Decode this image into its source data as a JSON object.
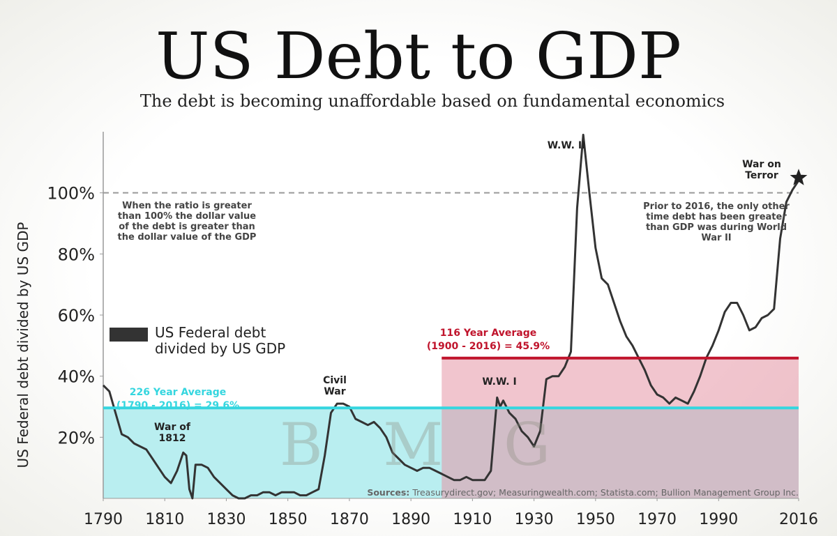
{
  "chart_data": {
    "type": "line",
    "title": "US Debt to GDP",
    "subtitle": "The debt is becoming unaffordable based on fundamental economics",
    "ylabel": "US Federal debt divided by US GDP",
    "xlim": [
      1790,
      2016
    ],
    "xticks": [
      1790,
      1810,
      1830,
      1850,
      1870,
      1890,
      1910,
      1930,
      1950,
      1970,
      1990,
      2016
    ],
    "ylim": [
      0,
      120
    ],
    "yticks": [
      {
        "value": 20,
        "label": "20%"
      },
      {
        "value": 40,
        "label": "40%"
      },
      {
        "value": 60,
        "label": "60%"
      },
      {
        "value": 80,
        "label": "80%"
      },
      {
        "value": 100,
        "label": "100%"
      }
    ],
    "reference_line": 100,
    "series": [
      {
        "name": "US Federal debt divided by US GDP",
        "color": "#333333",
        "x": [
          1790,
          1792,
          1794,
          1796,
          1798,
          1800,
          1802,
          1804,
          1806,
          1808,
          1810,
          1812,
          1814,
          1816,
          1817,
          1818,
          1819,
          1820,
          1822,
          1824,
          1826,
          1828,
          1830,
          1832,
          1834,
          1836,
          1838,
          1840,
          1842,
          1844,
          1846,
          1848,
          1850,
          1852,
          1854,
          1856,
          1858,
          1860,
          1862,
          1864,
          1866,
          1868,
          1870,
          1872,
          1874,
          1876,
          1878,
          1880,
          1882,
          1884,
          1886,
          1888,
          1890,
          1892,
          1894,
          1896,
          1898,
          1900,
          1902,
          1904,
          1906,
          1908,
          1910,
          1912,
          1914,
          1916,
          1918,
          1919,
          1920,
          1922,
          1924,
          1926,
          1928,
          1930,
          1932,
          1934,
          1936,
          1938,
          1940,
          1942,
          1944,
          1946,
          1948,
          1950,
          1952,
          1954,
          1956,
          1958,
          1960,
          1962,
          1964,
          1966,
          1968,
          1970,
          1972,
          1974,
          1976,
          1978,
          1980,
          1982,
          1984,
          1986,
          1988,
          1990,
          1992,
          1994,
          1996,
          1998,
          2000,
          2002,
          2004,
          2006,
          2008,
          2010,
          2012,
          2014,
          2016
        ],
        "values": [
          37,
          35,
          28,
          21,
          20,
          18,
          17,
          16,
          13,
          10,
          7,
          5,
          9,
          15,
          14,
          3,
          0,
          11,
          11,
          10,
          7,
          5,
          3,
          1,
          0,
          0,
          1,
          1,
          2,
          2,
          1,
          2,
          2,
          2,
          1,
          1,
          2,
          3,
          14,
          28,
          31,
          31,
          30,
          26,
          25,
          24,
          25,
          23,
          20,
          15,
          13,
          11,
          10,
          9,
          10,
          10,
          9,
          8,
          7,
          6,
          6,
          7,
          6,
          6,
          6,
          9,
          33,
          30,
          32,
          28,
          26,
          22,
          20,
          17,
          22,
          39,
          40,
          40,
          43,
          48,
          95,
          119,
          100,
          82,
          72,
          70,
          64,
          58,
          53,
          50,
          46,
          42,
          37,
          34,
          33,
          31,
          33,
          32,
          31,
          35,
          40,
          46,
          50,
          55,
          61,
          64,
          64,
          60,
          55,
          56,
          59,
          60,
          62,
          85,
          97,
          101,
          104
        ]
      }
    ],
    "averages": [
      {
        "value": 29.6,
        "start": 1790,
        "end": 2016,
        "color": "#35d6df",
        "fill": "#b9eef0",
        "label": [
          "226 Year Average",
          "(1790 - 2016) = 29.6%"
        ]
      },
      {
        "value": 45.9,
        "start": 1900,
        "end": 2016,
        "color": "#c0142c",
        "fill": "rgba(230,150,165,0.55)",
        "label": [
          "116 Year Average",
          "(1900 - 2016) = 45.9%"
        ]
      }
    ],
    "annotations": [
      "W.W. II",
      "War on Terror",
      "Civil War",
      "War of 1812",
      "W.W. I",
      "When the ratio is greater than 100% the dollar value of the debt is greater than the dollar value of the GDP",
      "Prior to 2016, the only other time debt has been greater than GDP was during World War II"
    ],
    "watermark": "B M G",
    "sources_label": "Sources:",
    "sources": "Treasurydirect.gov; Measuringwealth.com; Statista.com; Bullion Management Group Inc."
  }
}
